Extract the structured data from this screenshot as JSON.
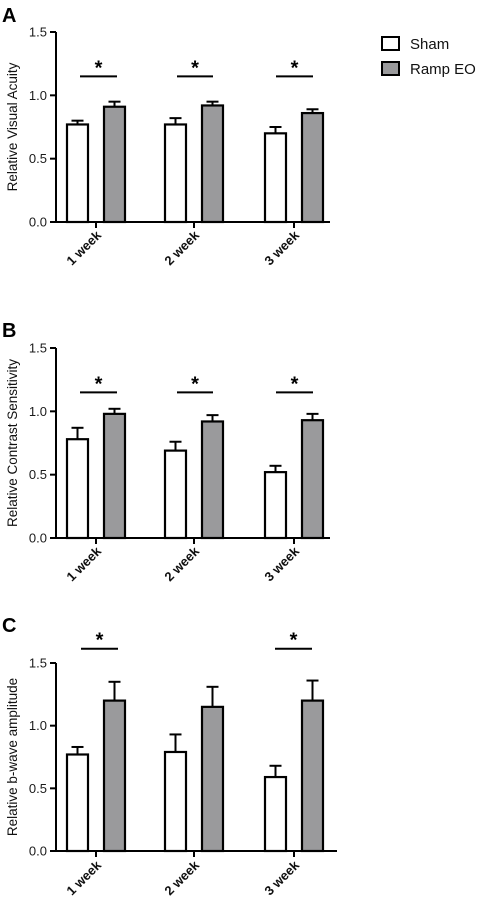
{
  "legend": [
    {
      "label": "Sham",
      "fill": "#ffffff"
    },
    {
      "label": "Ramp EO",
      "fill": "#9a9a9c"
    }
  ],
  "colors": {
    "axis": "#000000",
    "sham": "#ffffff",
    "ramp": "#9a9a9c"
  },
  "chart_data": [
    {
      "type": "bar",
      "panel_label": "A",
      "ylabel": "Relative Visual Acuity",
      "ylim": [
        0,
        1.5
      ],
      "yticks": [
        "0.0",
        "0.5",
        "1.0",
        "1.5"
      ],
      "categories": [
        "1 week",
        "2 week",
        "3 week"
      ],
      "series": [
        {
          "name": "Sham",
          "values": [
            0.77,
            0.77,
            0.7
          ],
          "errors": [
            0.03,
            0.05,
            0.05
          ]
        },
        {
          "name": "Ramp EO",
          "values": [
            0.91,
            0.92,
            0.86
          ],
          "errors": [
            0.04,
            0.03,
            0.03
          ]
        }
      ],
      "significance": [
        "*",
        "*",
        "*"
      ]
    },
    {
      "type": "bar",
      "panel_label": "B",
      "ylabel": "Relative Contrast Sensitivity",
      "ylim": [
        0,
        1.5
      ],
      "yticks": [
        "0.0",
        "0.5",
        "1.0",
        "1.5"
      ],
      "categories": [
        "1 week",
        "2 week",
        "3 week"
      ],
      "series": [
        {
          "name": "Sham",
          "values": [
            0.78,
            0.69,
            0.52
          ],
          "errors": [
            0.09,
            0.07,
            0.05
          ]
        },
        {
          "name": "Ramp EO",
          "values": [
            0.98,
            0.92,
            0.93
          ],
          "errors": [
            0.04,
            0.05,
            0.05
          ]
        }
      ],
      "significance": [
        "*",
        "*",
        "*"
      ]
    },
    {
      "type": "bar",
      "panel_label": "C",
      "ylabel": "Relative b-wave amplitude",
      "ylim": [
        0,
        1.5
      ],
      "yticks": [
        "0.0",
        "0.5",
        "1.0",
        "1.5"
      ],
      "categories": [
        "1 week",
        "2 week",
        "3 week"
      ],
      "series": [
        {
          "name": "Sham",
          "values": [
            0.77,
            0.79,
            0.59
          ],
          "errors": [
            0.06,
            0.14,
            0.09
          ]
        },
        {
          "name": "Ramp EO",
          "values": [
            1.2,
            1.15,
            1.2
          ],
          "errors": [
            0.15,
            0.16,
            0.16
          ]
        }
      ],
      "significance": [
        "*",
        "",
        "*"
      ]
    }
  ]
}
